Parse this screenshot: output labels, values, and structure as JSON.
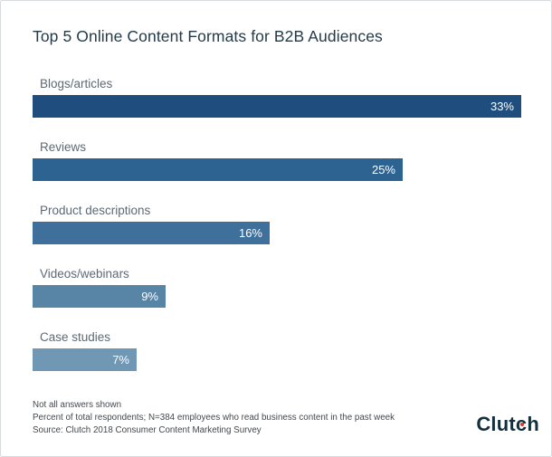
{
  "window": {
    "background": "#ffffff",
    "border_color": "#d7dadd"
  },
  "header": {
    "title": "Top 5 Online Content Formats for B2B Audiences",
    "title_color": "#233b4a"
  },
  "chart_data": {
    "type": "bar",
    "orientation": "horizontal",
    "title": "Top 5 Online Content Formats for B2B Audiences",
    "categories": [
      "Blogs/articles",
      "Reviews",
      "Product descriptions",
      "Videos/webinars",
      "Case studies"
    ],
    "values": [
      33,
      25,
      16,
      9,
      7
    ],
    "unit": "%",
    "xlim": [
      0,
      33
    ],
    "xlabel": "",
    "ylabel": "",
    "grid": false,
    "legend": false,
    "value_labels": "inside-end-white",
    "bars": [
      {
        "label": "Blogs/articles",
        "value": 33,
        "display": "33%",
        "color": "#1F4E7E"
      },
      {
        "label": "Reviews",
        "value": 25,
        "display": "25%",
        "color": "#2D6391"
      },
      {
        "label": "Product descriptions",
        "value": 16,
        "display": "16%",
        "color": "#3F709B"
      },
      {
        "label": "Videos/webinars",
        "value": 9,
        "display": "9%",
        "color": "#5884A6"
      },
      {
        "label": "Case studies",
        "value": 7,
        "display": "7%",
        "color": "#7097B4"
      }
    ]
  },
  "footer": {
    "notes": [
      "Not all answers shown",
      "Percent of total respondents; N=384 employees who read business content in the past week",
      "Source: Clutch 2018 Consumer Content Marketing Survey"
    ],
    "logo": {
      "text": "Clutch",
      "text_before": "Clut",
      "dotted_letter": "c",
      "text_after": "h",
      "text_color": "#14303d",
      "dot_color": "#E5332D"
    }
  }
}
